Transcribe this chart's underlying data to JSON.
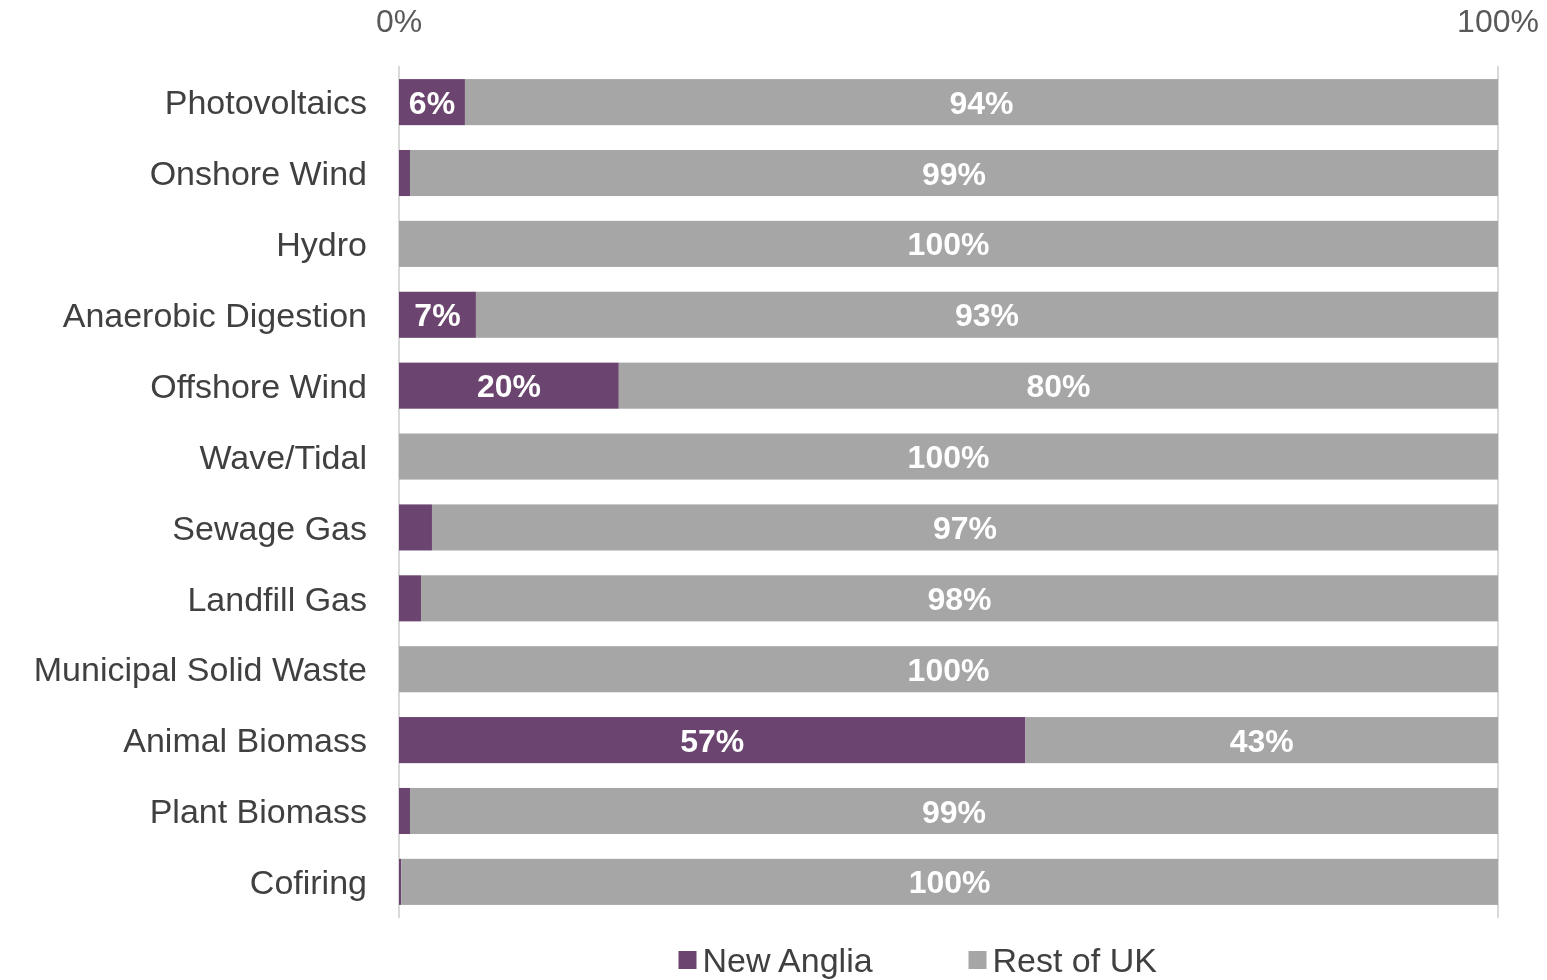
{
  "chart_data": {
    "type": "bar",
    "orientation": "horizontal",
    "stacked": true,
    "categories": [
      "Photovoltaics",
      "Onshore Wind",
      "Hydro",
      "Anaerobic Digestion",
      "Offshore Wind",
      "Wave/Tidal",
      "Sewage Gas",
      "Landfill Gas",
      "Municipal Solid Waste",
      "Animal Biomass",
      "Plant Biomass",
      "Cofiring"
    ],
    "series": [
      {
        "name": "New Anglia",
        "color": "#6b4570",
        "values": [
          6,
          1,
          0,
          7,
          20,
          0,
          3,
          2,
          0,
          57,
          1,
          0.2
        ],
        "value_labels": [
          "6%",
          null,
          null,
          "7%",
          "20%",
          null,
          null,
          null,
          null,
          "57%",
          null,
          null
        ]
      },
      {
        "name": "Rest of UK",
        "color": "#a6a6a6",
        "values": [
          94,
          99,
          100,
          93,
          80,
          100,
          97,
          98,
          100,
          43,
          99,
          99.8
        ],
        "value_labels": [
          "94%",
          "99%",
          "100%",
          "93%",
          "80%",
          "100%",
          "97%",
          "98%",
          "100%",
          "43%",
          "99%",
          "100%"
        ]
      }
    ],
    "xlim": [
      0,
      100
    ],
    "xticks": [
      {
        "value": 0,
        "label": "0%"
      },
      {
        "value": 100,
        "label": "100%"
      }
    ],
    "legend": "bottom"
  }
}
